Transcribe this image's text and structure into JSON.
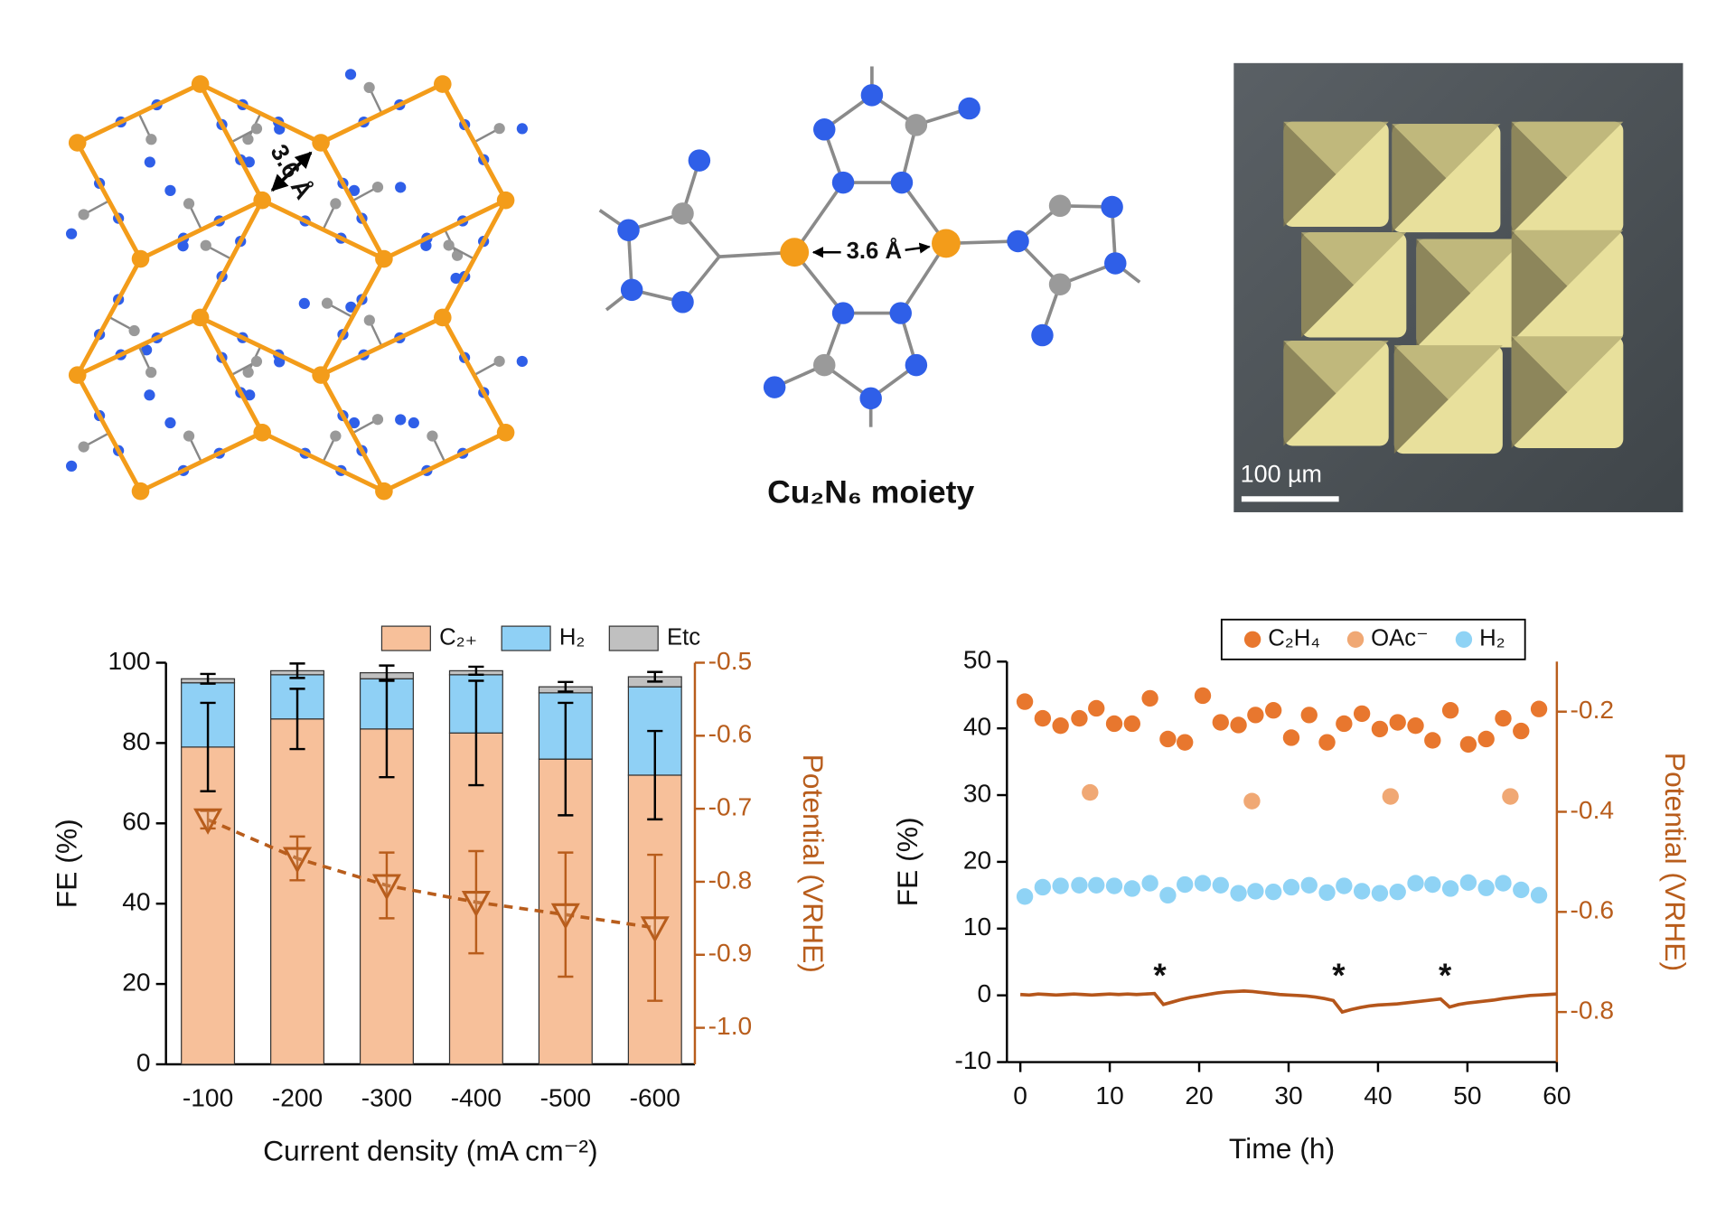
{
  "panels": {
    "framework_distance": "3.6 Å",
    "moiety_distance": "3.6 Å",
    "moiety_caption": "Cu₂N₆ moiety",
    "scale_bar": "100 µm"
  },
  "chart_data": [
    {
      "type": "bar",
      "stacked": true,
      "categories": [
        "-100",
        "-200",
        "-300",
        "-400",
        "-500",
        "-600"
      ],
      "x_label": "Current density (mA cm⁻²)",
      "y_label": "FE (%)",
      "y2_label": "Potential (VRHE)",
      "ylim": [
        0,
        100
      ],
      "yticks": [
        0,
        20,
        40,
        60,
        80,
        100
      ],
      "y2lim": [
        -1.05,
        -0.5
      ],
      "y2ticks": [
        -0.5,
        -0.6,
        -0.7,
        -0.8,
        -0.9,
        {
          "value": -1,
          "label": "-1.0"
        }
      ],
      "y2color": "#b85d1c",
      "legend": "top",
      "series": [
        {
          "name": "C₂₊",
          "color": "#f7c09a",
          "values": [
            79,
            86,
            83.5,
            82.5,
            76,
            72
          ],
          "errors": [
            11,
            7.5,
            12,
            13,
            14,
            11
          ]
        },
        {
          "name": "H₂",
          "color": "#8fd0f5",
          "values": [
            16,
            11,
            12.5,
            14.5,
            16.5,
            22
          ]
        },
        {
          "name": "Etc",
          "color": "#c0c0c0",
          "values": [
            1,
            1,
            1.5,
            1,
            1.5,
            2.5
          ],
          "errors": [
            1.2,
            1.8,
            1.8,
            1,
            1.2,
            1.2
          ]
        },
        {
          "color": "#b85d1c",
          "axis": "y2",
          "kind": "line",
          "marker": "triangle-down",
          "dashed": true,
          "values": [
            -0.715,
            -0.768,
            -0.805,
            -0.828,
            -0.845,
            -0.863
          ],
          "errors": [
            0.012,
            0.03,
            0.045,
            0.07,
            0.085,
            0.1
          ]
        }
      ]
    },
    {
      "type": "scatter",
      "x_label": "Time (h)",
      "y_label": "FE (%)",
      "y2_label": "Potential (VRHE)",
      "xlim": [
        -1.5,
        60
      ],
      "xticks": [
        0,
        10,
        20,
        30,
        40,
        50,
        60
      ],
      "ylim": [
        -10,
        50
      ],
      "yticks": [
        -10,
        0,
        10,
        20,
        30,
        40,
        50
      ],
      "y2lim": [
        -0.9,
        -0.1
      ],
      "y2ticks": [
        -0.2,
        -0.4,
        -0.6,
        -0.8
      ],
      "y2color": "#b85d1c",
      "legend": "top",
      "legend_frame": true,
      "series": [
        {
          "name": "C₂H₄",
          "color": "#e8772e",
          "x": [
            0.5,
            2.5,
            4.5,
            6.6,
            8.5,
            10.5,
            12.5,
            14.5,
            16.5,
            18.4,
            20.4,
            22.4,
            24.4,
            26.3,
            28.3,
            30.3,
            32.3,
            34.3,
            36.2,
            38.2,
            40.2,
            42.2,
            44.2,
            46.1,
            48.1,
            50.1,
            52.1,
            54,
            56,
            58
          ],
          "values": [
            44,
            41.5,
            40.4,
            41.5,
            43,
            40.7,
            40.7,
            44.5,
            38.4,
            37.9,
            44.9,
            40.9,
            40.5,
            42,
            42.7,
            38.6,
            42,
            37.9,
            40.7,
            42.2,
            39.9,
            40.9,
            40.4,
            38.2,
            42.7,
            37.6,
            38.4,
            41.5,
            39.6,
            42.9
          ]
        },
        {
          "name": "OAc⁻",
          "color": "#f0a874",
          "x": [
            7.8,
            25.9,
            41.4,
            54.8
          ],
          "values": [
            30.4,
            29.1,
            29.8,
            29.8
          ]
        },
        {
          "name": "H₂",
          "color": "#8fd3f5",
          "x": [
            0.5,
            2.5,
            4.5,
            6.6,
            8.5,
            10.5,
            12.5,
            14.5,
            16.5,
            18.4,
            20.4,
            22.4,
            24.4,
            26.3,
            28.3,
            30.3,
            32.3,
            34.3,
            36.2,
            38.2,
            40.2,
            42.2,
            44.2,
            46.1,
            48.1,
            50.1,
            52.1,
            54,
            56,
            58
          ],
          "values": [
            14.8,
            16.2,
            16.4,
            16.5,
            16.5,
            16.4,
            16,
            16.8,
            15,
            16.6,
            16.8,
            16.5,
            15.3,
            15.6,
            15.5,
            16.2,
            16.5,
            15.4,
            16.4,
            15.6,
            15.3,
            15.5,
            16.8,
            16.6,
            16,
            16.9,
            16.1,
            16.8,
            15.8,
            15
          ]
        },
        {
          "color": "#b5561b",
          "axis": "y2",
          "kind": "line",
          "x": [
            0,
            1,
            2,
            3,
            4,
            5,
            6,
            7,
            8,
            9,
            10,
            11,
            12,
            13,
            14,
            15,
            16,
            17,
            18,
            19,
            20,
            21,
            22,
            23,
            24,
            25,
            26,
            27,
            28,
            29,
            30,
            31,
            32,
            33,
            34,
            35,
            36,
            37,
            38,
            39,
            40,
            41,
            42,
            43,
            44,
            45,
            46,
            47,
            48,
            49,
            50,
            51,
            52,
            53,
            54,
            55,
            56,
            57,
            58,
            59,
            60
          ],
          "values": [
            -0.765,
            -0.766,
            -0.764,
            -0.765,
            -0.766,
            -0.765,
            -0.764,
            -0.765,
            -0.766,
            -0.765,
            -0.764,
            -0.765,
            -0.764,
            -0.765,
            -0.764,
            -0.763,
            -0.785,
            -0.78,
            -0.775,
            -0.771,
            -0.768,
            -0.765,
            -0.762,
            -0.76,
            -0.759,
            -0.758,
            -0.759,
            -0.761,
            -0.763,
            -0.765,
            -0.766,
            -0.767,
            -0.768,
            -0.77,
            -0.773,
            -0.777,
            -0.8,
            -0.795,
            -0.791,
            -0.788,
            -0.786,
            -0.785,
            -0.784,
            -0.782,
            -0.78,
            -0.778,
            -0.776,
            -0.774,
            -0.79,
            -0.785,
            -0.782,
            -0.78,
            -0.778,
            -0.776,
            -0.773,
            -0.771,
            -0.769,
            -0.767,
            -0.766,
            -0.765,
            -0.764
          ]
        }
      ],
      "annotations": [
        {
          "text": "*",
          "x": 15.6,
          "y": 3.6
        },
        {
          "text": "*",
          "x": 35.6,
          "y": 3.6
        },
        {
          "text": "*",
          "x": 47.5,
          "y": 3.6
        }
      ]
    }
  ]
}
